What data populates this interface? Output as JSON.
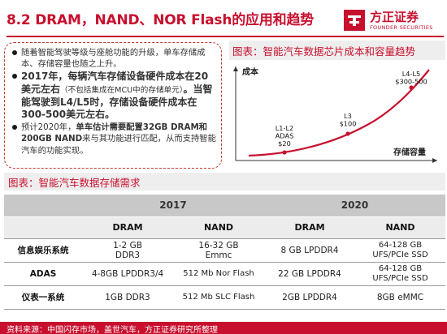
{
  "header": {
    "title": "8.2 DRAM，NAND、NOR Flash的应用和趋势",
    "logo_cn": "方正证券",
    "logo_en": "FOUNDER SECURITIES",
    "logo_icon": "founder-logo-icon",
    "brand_color": "#c8102e"
  },
  "bullets": [
    {
      "segments": [
        {
          "text": "随着智能驾驶等级与座舱功能的升级，单车存储成本、存储容量也随之上升。",
          "style": "normal"
        }
      ]
    },
    {
      "segments": [
        {
          "text": "2017年，每辆汽车存储设备硬件成本在20美元左右",
          "style": "bold-big"
        },
        {
          "text": "（不包括集成在MCU中的存储单元）",
          "style": "small"
        },
        {
          "text": "。当智能驾驶到L4/L5时，存储设备硬件成本在300-500美元左右。",
          "style": "bold-big"
        }
      ]
    },
    {
      "segments": [
        {
          "text": "预计2020年，",
          "style": "normal"
        },
        {
          "text": "单车估计需要配置32GB DRAM和200GB NAND",
          "style": "bold"
        },
        {
          "text": "来与其功能进行匹配，从而支持智能汽车的功能实现。",
          "style": "normal"
        }
      ]
    }
  ],
  "chart_title": "图表：智能汽车数据芯片成本和容量趋势",
  "chart_data": {
    "type": "line",
    "ylabel": "成本",
    "xlabel": "存储容量",
    "curve_color": "#c8102e",
    "points": [
      {
        "label_lines": [
          "L1-L2",
          "ADAS",
          "$20"
        ]
      },
      {
        "label_lines": [
          "L3",
          "$100"
        ]
      },
      {
        "label_lines": [
          "L4-L5",
          "$300-500"
        ]
      }
    ]
  },
  "table": {
    "title": "图表：智能汽车数据存储需求",
    "years": [
      "2017",
      "2020"
    ],
    "columns": [
      "DRAM",
      "NAND",
      "DRAM",
      "NAND"
    ],
    "rows": [
      {
        "label": "信息娱乐系统",
        "cells": [
          "1-2 GB\nDDR3",
          "16-32 GB\nEmmc",
          "8 GB LPDDR4",
          "64-128 GB\nUFS/PCIe SSD"
        ]
      },
      {
        "label": "ADAS",
        "cells": [
          "4-8GB LPDDR3/4",
          "512 Mb Nor Flash",
          "22 GB LPDDR4",
          "64-128 GB\nUFS/PCIe SSD"
        ]
      },
      {
        "label": "仪表一系统",
        "cells": [
          "1GB DDR3",
          "512 Mb SLC Flash",
          "2GB LPDDR4",
          "8GB eMMC"
        ]
      }
    ]
  },
  "source": "资料来源：中国闪存市场，盖世汽车，方正证券研究所整理"
}
